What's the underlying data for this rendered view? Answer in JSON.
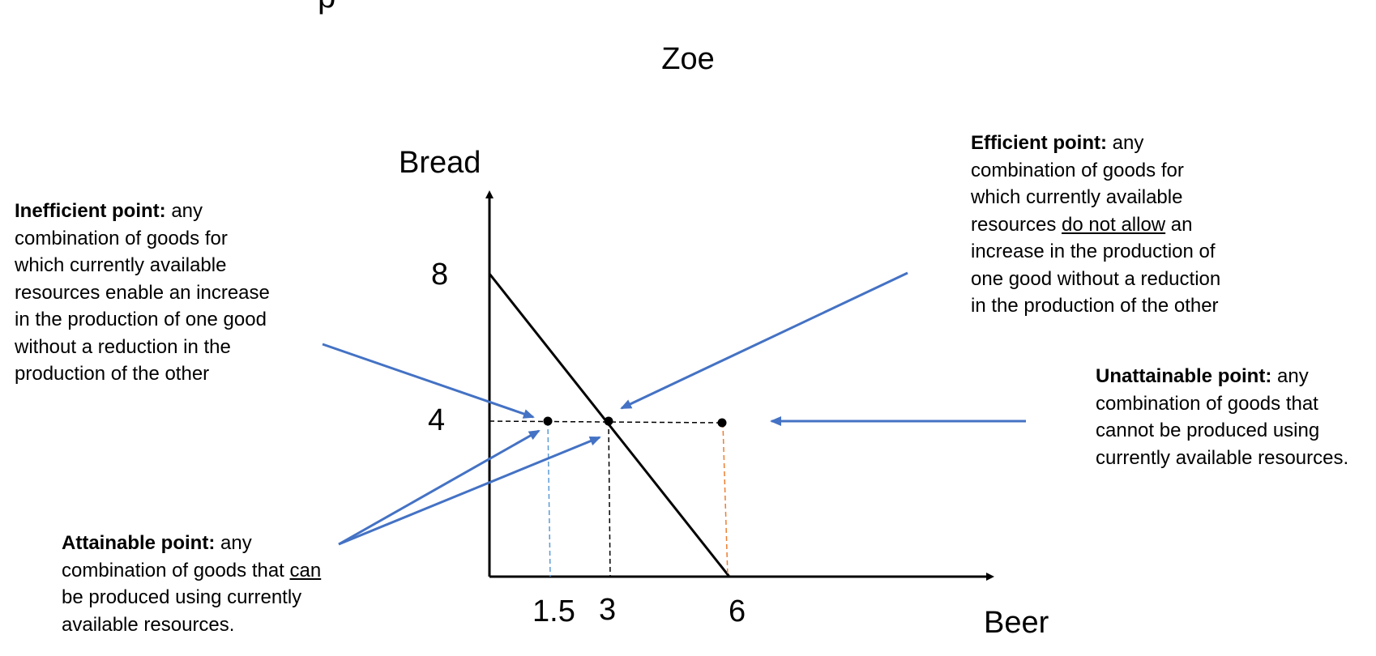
{
  "clipped_heading_char": "p",
  "title": "Zoe",
  "chart_data": {
    "type": "line",
    "title": "Zoe",
    "xlabel": "Beer",
    "ylabel": "Bread",
    "x_ticks": [
      "1.5",
      "3",
      "6"
    ],
    "y_ticks": [
      "8",
      "4"
    ],
    "ppf_line": [
      [
        0,
        8
      ],
      [
        6,
        0
      ]
    ],
    "points": [
      {
        "x": 1.5,
        "y": 4,
        "kind": "inefficient / attainable"
      },
      {
        "x": 3,
        "y": 4,
        "kind": "efficient / attainable"
      },
      {
        "x": 6,
        "y": 4,
        "kind": "unattainable"
      }
    ],
    "guide_colors": {
      "x_1_5": "#5b9bd5",
      "x_3": "#000000",
      "x_6": "#ed7d31"
    },
    "arrow_color": "#4472c4"
  },
  "annotations": {
    "inefficient": {
      "heading": "Inefficient point:",
      "lines": [
        " any",
        "combination of goods for",
        "which currently available",
        "resources enable an increase",
        "in the production of one good",
        "without a reduction in the",
        "production of the other"
      ]
    },
    "efficient": {
      "heading": "Efficient point:",
      "line1_rest": " any",
      "line2": "combination of goods for",
      "line3": "which currently available",
      "line4_pre": "resources ",
      "line4_underlined": "do not allow",
      "line4_post": " an",
      "line5": "increase in the production of",
      "line6": "one good without a reduction",
      "line7": "in the production of the other"
    },
    "unattainable": {
      "heading": "Unattainable point:",
      "line1_rest": " any",
      "line2": "combination of goods that",
      "line3": "cannot be produced using",
      "line4": "currently available resources."
    },
    "attainable": {
      "heading": "Attainable point:",
      "line1_rest": " any",
      "line2_pre": "combination of goods that ",
      "line2_underlined": "can",
      "line3": "be produced using currently",
      "line4": "available resources."
    }
  }
}
